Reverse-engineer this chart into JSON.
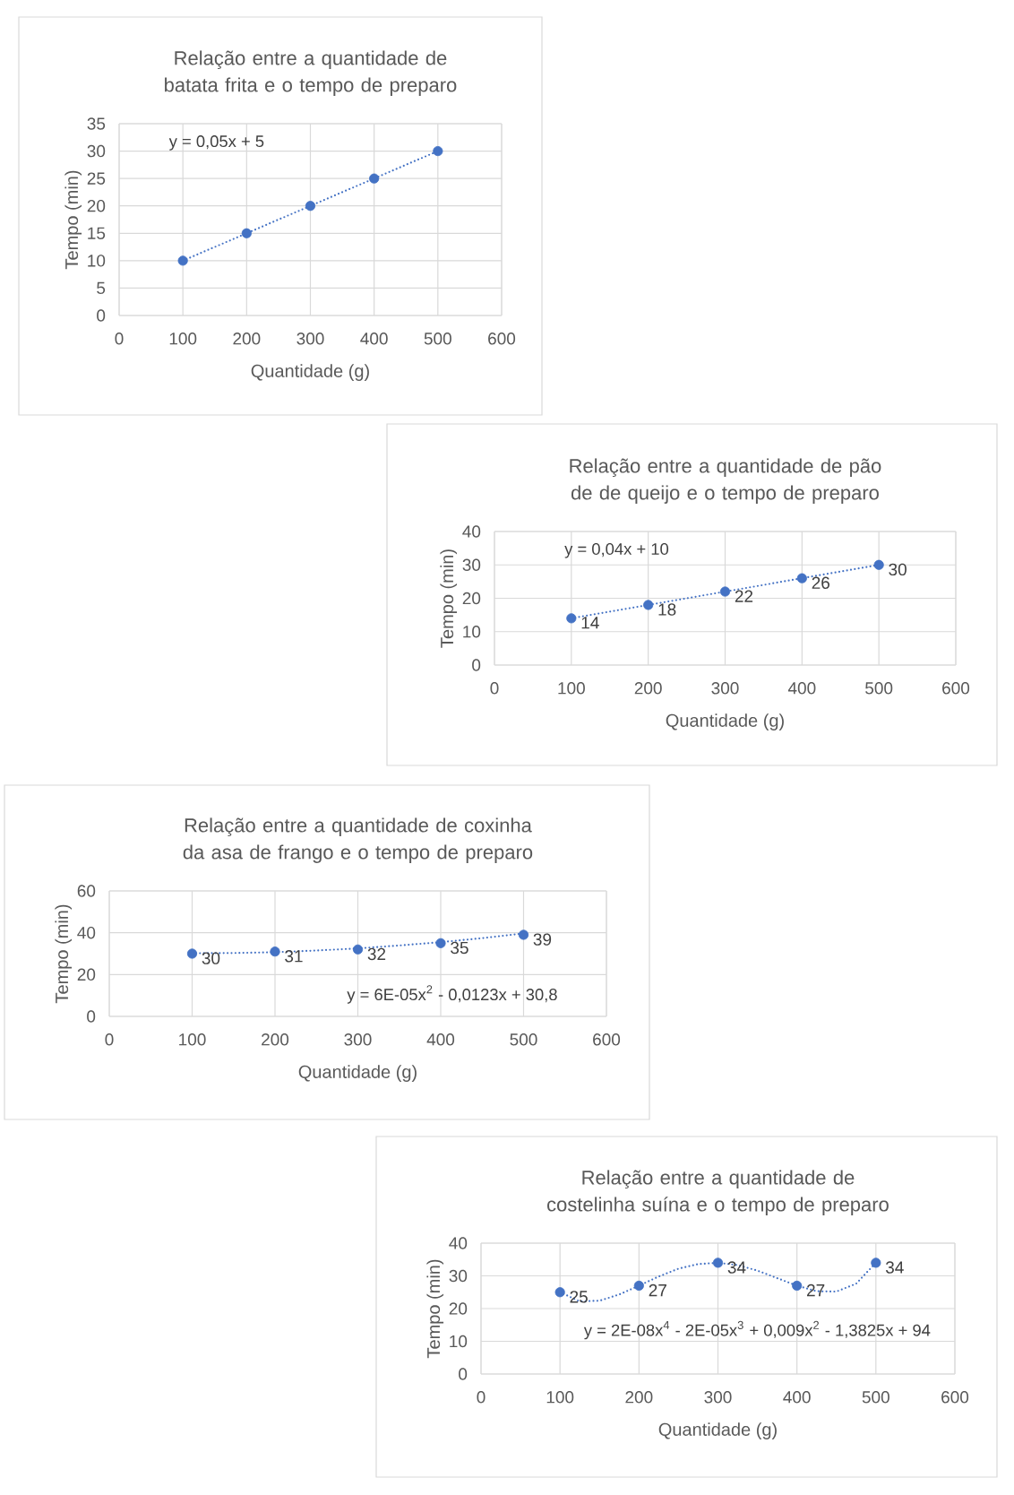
{
  "chart_data": [
    {
      "type": "scatter",
      "title": "Relação entre a quantidade de batata frita e o tempo de preparo",
      "xlabel": "Quantidade (g)",
      "ylabel": "Tempo (min)",
      "grid": true,
      "xlim": [
        0,
        600
      ],
      "xticks": [
        0,
        100,
        200,
        300,
        400,
        500,
        600
      ],
      "ylim": [
        0,
        35
      ],
      "yticks": [
        0,
        5,
        10,
        15,
        20,
        25,
        30,
        35
      ],
      "x": [
        100,
        200,
        300,
        400,
        500
      ],
      "series": [
        {
          "marker": "circle",
          "color": "#4472c4",
          "values": [
            10,
            15,
            20,
            25,
            30
          ]
        },
        {
          "type": "line",
          "marker": "none",
          "line_style": "dotted",
          "color": "#4472c4",
          "x": [
            100,
            500
          ],
          "values": [
            10,
            30
          ]
        }
      ],
      "annotations": [
        "y = 0,05x + 5"
      ]
    },
    {
      "type": "scatter",
      "title": "Relação entre a quantidade de pão de de queijo e o tempo de preparo",
      "xlabel": "Quantidade (g)",
      "ylabel": "Tempo (min)",
      "grid": true,
      "xlim": [
        0,
        600
      ],
      "xticks": [
        0,
        100,
        200,
        300,
        400,
        500,
        600
      ],
      "ylim": [
        0,
        40
      ],
      "yticks": [
        0,
        10,
        20,
        30,
        40
      ],
      "x": [
        100,
        200,
        300,
        400,
        500
      ],
      "series": [
        {
          "marker": "circle",
          "color": "#4472c4",
          "values": [
            14,
            18,
            22,
            26,
            30
          ],
          "value_labels": [
            "14",
            "18",
            "22",
            "26",
            "30"
          ]
        },
        {
          "type": "line",
          "marker": "none",
          "line_style": "dotted",
          "color": "#4472c4",
          "x": [
            100,
            500
          ],
          "values": [
            14,
            30
          ]
        }
      ],
      "annotations": [
        "y = 0,04x + 10"
      ]
    },
    {
      "type": "scatter",
      "title": "Relação entre a quantidade de coxinha da asa de frango e o tempo de preparo",
      "xlabel": "Quantidade (g)",
      "ylabel": "Tempo (min)",
      "grid": true,
      "xlim": [
        0,
        600
      ],
      "xticks": [
        0,
        100,
        200,
        300,
        400,
        500,
        600
      ],
      "ylim": [
        0,
        60
      ],
      "yticks": [
        0,
        20,
        40,
        60
      ],
      "x": [
        100,
        200,
        300,
        400,
        500
      ],
      "series": [
        {
          "marker": "circle",
          "color": "#4472c4",
          "values": [
            30,
            31,
            32,
            35,
            39
          ],
          "value_labels": [
            "30",
            "31",
            "32",
            "35",
            "39"
          ]
        },
        {
          "type": "line",
          "marker": "none",
          "line_style": "dotted",
          "color": "#4472c4",
          "x": [
            100,
            150,
            200,
            250,
            300,
            350,
            400,
            450,
            500
          ],
          "values": [
            30.2,
            30.3,
            30.7,
            31.5,
            32.5,
            33.9,
            35.5,
            37.4,
            39.7
          ]
        }
      ],
      "annotations": [
        "y = 6E-05x$^{2}$ - 0,0123x + 30,8"
      ]
    },
    {
      "type": "scatter",
      "title": "Relação entre a quantidade de costelinha suína e o tempo de preparo",
      "xlabel": "Quantidade (g)",
      "ylabel": "Tempo (min)",
      "grid": true,
      "xlim": [
        0,
        600
      ],
      "xticks": [
        0,
        100,
        200,
        300,
        400,
        500,
        600
      ],
      "ylim": [
        0,
        40
      ],
      "yticks": [
        0,
        10,
        20,
        30,
        40
      ],
      "x": [
        100,
        200,
        300,
        400,
        500
      ],
      "series": [
        {
          "marker": "circle",
          "color": "#4472c4",
          "values": [
            25,
            27,
            34,
            27,
            34
          ],
          "value_labels": [
            "25",
            "27",
            "34",
            "27",
            "34"
          ]
        },
        {
          "type": "line",
          "marker": "none",
          "line_style": "dotted",
          "color": "#4472c4",
          "x": [
            100,
            125,
            150,
            175,
            200,
            225,
            250,
            275,
            300,
            325,
            350,
            375,
            400,
            425,
            450,
            475,
            500
          ],
          "values": [
            25,
            22.2,
            22.4,
            24.3,
            27,
            29.8,
            32.2,
            33.6,
            34,
            33.3,
            31.6,
            29.3,
            27,
            25.3,
            25.2,
            27.6,
            34
          ]
        }
      ],
      "annotations": [
        "y = 2E-08x$^{4}$ - 2E-05x$^{3}$ + 0,009x$^{2}$ - 1,3825x + 94"
      ]
    }
  ]
}
